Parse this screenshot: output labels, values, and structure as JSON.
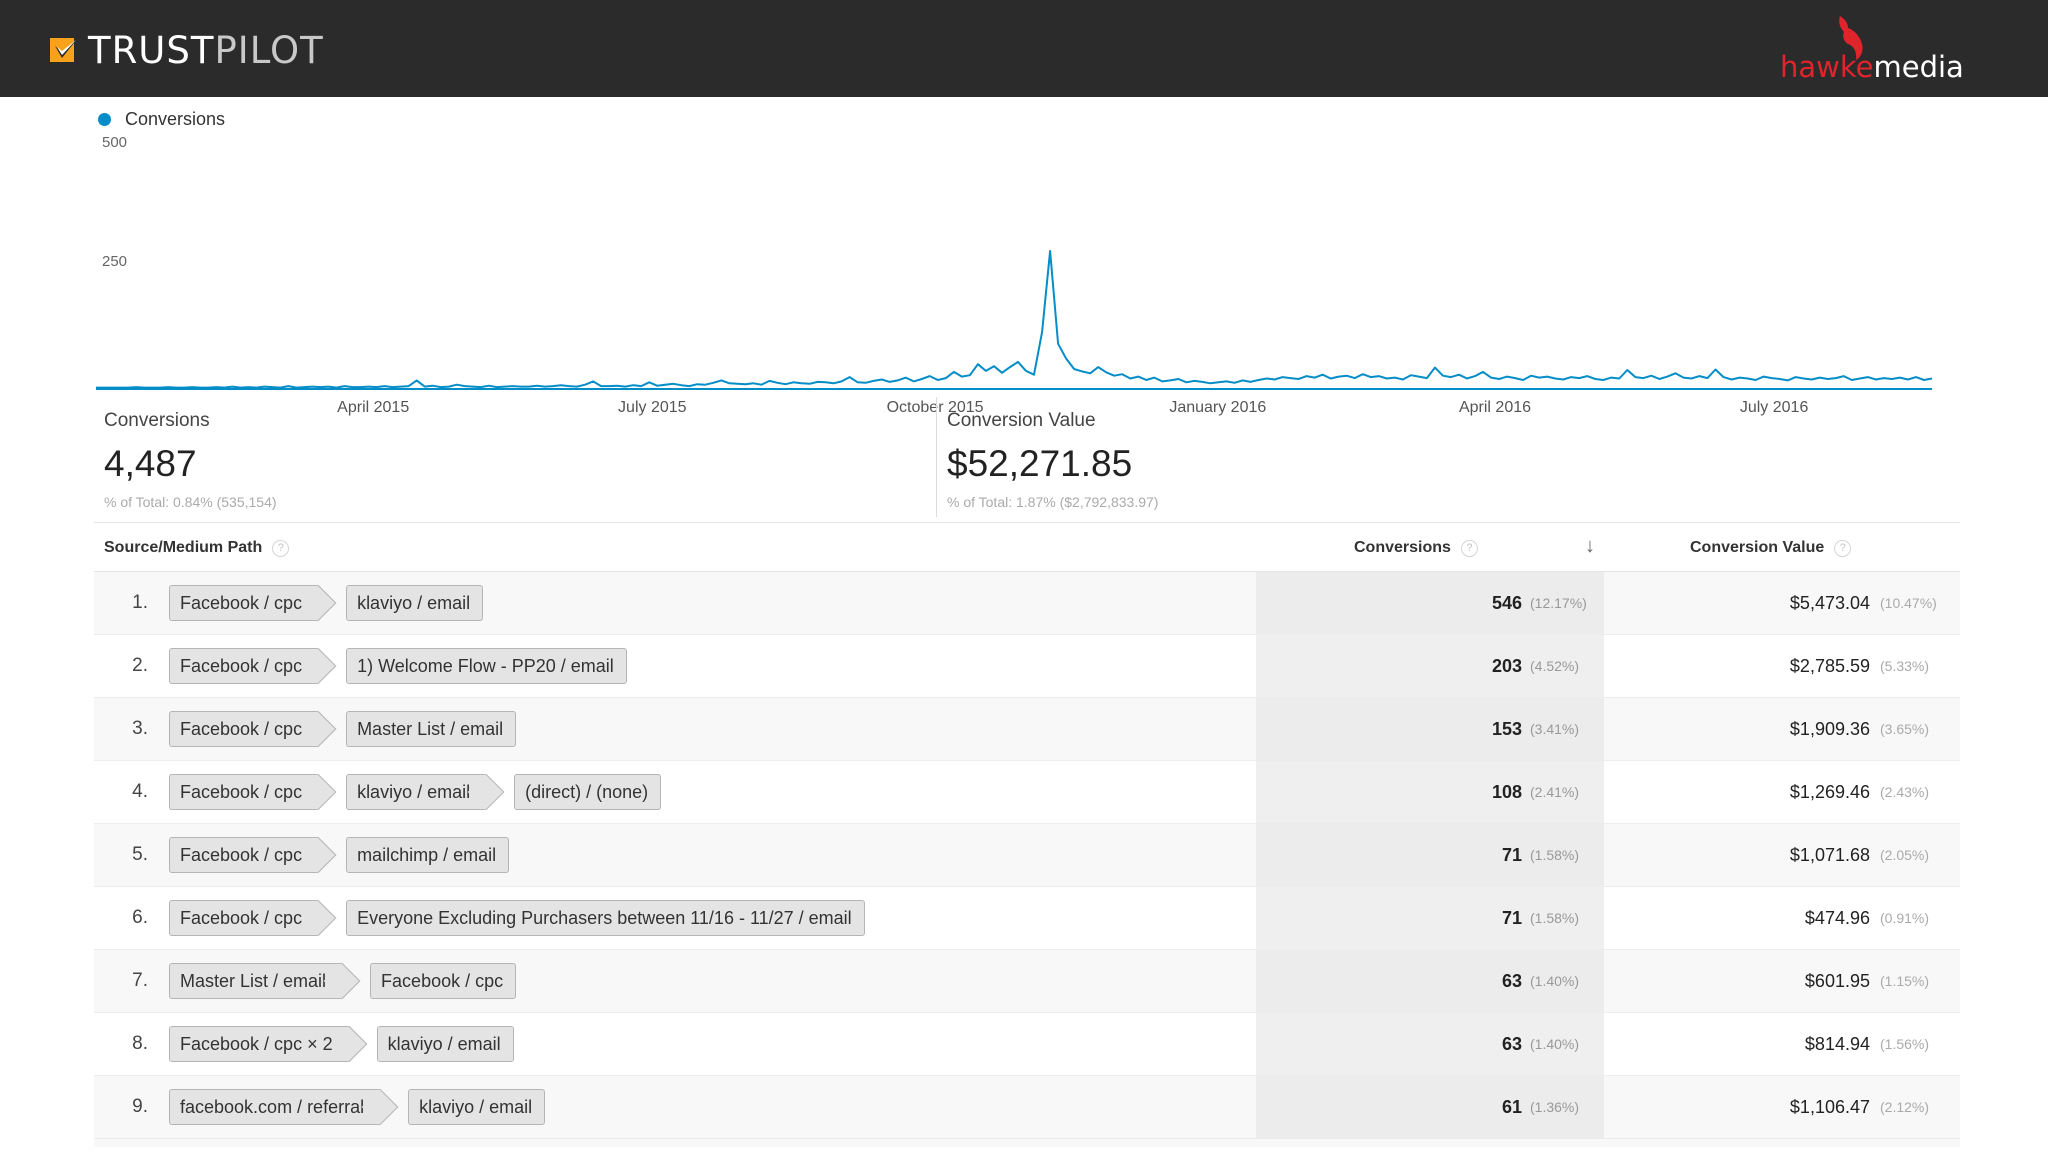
{
  "header": {
    "brand_left": {
      "name_bold": "TRUST",
      "name_light": "PILOT",
      "icon": "trustpilot-star-icon"
    },
    "brand_right": {
      "name_red": "hawke",
      "name_white": "media",
      "icon": "hawk-bird-icon"
    }
  },
  "colors": {
    "header_bg": "#2b2b2b",
    "series": "#058dc7",
    "accent_red": "#e0242b",
    "trustpilot_orange": "#f7a21a"
  },
  "chart_data": {
    "type": "line",
    "title": "",
    "legend": "Conversions",
    "series": [
      {
        "name": "Conversions",
        "values": [
          3,
          3,
          3,
          3,
          3,
          4,
          3,
          3,
          3,
          4,
          3,
          3,
          4,
          3,
          3,
          4,
          3,
          5,
          3,
          4,
          3,
          5,
          4,
          3,
          6,
          3,
          4,
          5,
          4,
          5,
          3,
          6,
          4,
          4,
          5,
          4,
          6,
          4,
          5,
          6,
          18,
          5,
          7,
          4,
          5,
          9,
          6,
          5,
          4,
          7,
          4,
          5,
          6,
          5,
          5,
          7,
          5,
          6,
          8,
          6,
          5,
          9,
          16,
          6,
          6,
          7,
          5,
          8,
          6,
          14,
          7,
          9,
          11,
          8,
          6,
          10,
          9,
          13,
          18,
          12,
          11,
          10,
          12,
          9,
          17,
          13,
          10,
          14,
          12,
          11,
          15,
          14,
          12,
          16,
          25,
          14,
          13,
          17,
          20,
          15,
          18,
          24,
          16,
          21,
          27,
          19,
          23,
          36,
          26,
          29,
          52,
          38,
          48,
          34,
          46,
          57,
          38,
          30,
          120,
          290,
          95,
          64,
          42,
          37,
          33,
          46,
          35,
          28,
          31,
          22,
          26,
          19,
          24,
          16,
          18,
          21,
          14,
          17,
          15,
          12,
          14,
          16,
          13,
          18,
          15,
          19,
          22,
          20,
          25,
          23,
          21,
          27,
          24,
          30,
          22,
          26,
          28,
          23,
          31,
          25,
          27,
          22,
          24,
          20,
          29,
          26,
          23,
          45,
          28,
          25,
          30,
          22,
          27,
          36,
          24,
          21,
          26,
          23,
          19,
          28,
          24,
          26,
          22,
          20,
          25,
          23,
          27,
          21,
          19,
          24,
          22,
          40,
          25,
          23,
          28,
          21,
          26,
          33,
          24,
          22,
          27,
          23,
          41,
          25,
          20,
          24,
          22,
          19,
          26,
          23,
          21,
          18,
          25,
          22,
          20,
          24,
          21,
          23,
          27,
          19,
          22,
          25,
          20,
          23,
          21,
          24,
          20,
          25,
          19,
          22
        ]
      }
    ],
    "ylim": [
      0,
      500
    ],
    "yticks": [
      "500",
      "250"
    ],
    "xticks": [
      "April 2015",
      "July 2015",
      "October 2015",
      "January 2016",
      "April 2016",
      "July 2016"
    ],
    "grid": false,
    "legend_position": "top-left"
  },
  "summary": {
    "conversions": {
      "label": "Conversions",
      "value": "4,487",
      "pct": "% of Total: 0.84% (535,154)"
    },
    "conversion_value": {
      "label": "Conversion Value",
      "value": "$52,271.85",
      "pct": "% of Total: 1.87% ($2,792,833.97)"
    }
  },
  "table": {
    "columns": {
      "path": "Source/Medium Path",
      "conversions": "Conversions",
      "conversion_value": "Conversion Value",
      "help": "?",
      "sort": "↓"
    },
    "rows": [
      {
        "num": "1.",
        "path": [
          "Facebook / cpc",
          "klaviyo / email"
        ],
        "conversions": "546",
        "conversions_pct": "(12.17%)",
        "value": "$5,473.04",
        "value_pct": "(10.47%)"
      },
      {
        "num": "2.",
        "path": [
          "Facebook / cpc",
          "1) Welcome Flow - PP20 / email"
        ],
        "conversions": "203",
        "conversions_pct": "(4.52%)",
        "value": "$2,785.59",
        "value_pct": "(5.33%)"
      },
      {
        "num": "3.",
        "path": [
          "Facebook / cpc",
          "Master List / email"
        ],
        "conversions": "153",
        "conversions_pct": "(3.41%)",
        "value": "$1,909.36",
        "value_pct": "(3.65%)"
      },
      {
        "num": "4.",
        "path": [
          "Facebook / cpc",
          "klaviyo / email",
          "(direct) / (none)"
        ],
        "conversions": "108",
        "conversions_pct": "(2.41%)",
        "value": "$1,269.46",
        "value_pct": "(2.43%)"
      },
      {
        "num": "5.",
        "path": [
          "Facebook / cpc",
          "mailchimp / email"
        ],
        "conversions": "71",
        "conversions_pct": "(1.58%)",
        "value": "$1,071.68",
        "value_pct": "(2.05%)"
      },
      {
        "num": "6.",
        "path": [
          "Facebook / cpc",
          "Everyone Excluding Purchasers between 11/16 - 11/27 / email"
        ],
        "conversions": "71",
        "conversions_pct": "(1.58%)",
        "value": "$474.96",
        "value_pct": "(0.91%)"
      },
      {
        "num": "7.",
        "path": [
          "Master List / email",
          "Facebook / cpc"
        ],
        "conversions": "63",
        "conversions_pct": "(1.40%)",
        "value": "$601.95",
        "value_pct": "(1.15%)"
      },
      {
        "num": "8.",
        "path": [
          "Facebook / cpc × 2",
          "klaviyo / email"
        ],
        "conversions": "63",
        "conversions_pct": "(1.40%)",
        "value": "$814.94",
        "value_pct": "(1.56%)"
      },
      {
        "num": "9.",
        "path": [
          "facebook.com / referral",
          "klaviyo / email"
        ],
        "conversions": "61",
        "conversions_pct": "(1.36%)",
        "value": "$1,106.47",
        "value_pct": "(2.12%)"
      }
    ]
  }
}
